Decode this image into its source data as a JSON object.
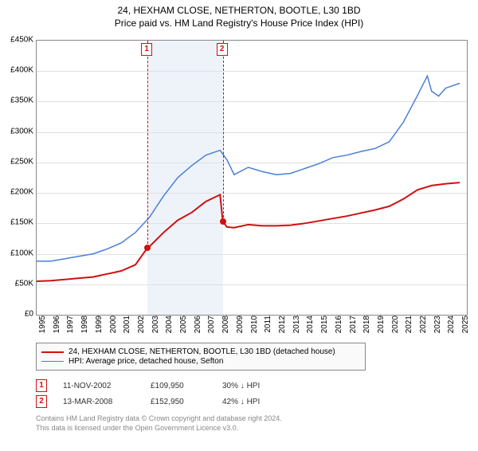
{
  "title": "24, HEXHAM CLOSE, NETHERTON, BOOTLE, L30 1BD",
  "subtitle": "Price paid vs. HM Land Registry's House Price Index (HPI)",
  "chart": {
    "type": "line",
    "background_color": "#ffffff",
    "grid_color": "#e0e0e0",
    "border_color": "#888888",
    "title_fontsize": 12,
    "label_fontsize": 10,
    "x": {
      "min": 1995,
      "max": 2025.5,
      "ticks": [
        1995,
        1996,
        1997,
        1998,
        1999,
        2000,
        2001,
        2002,
        2003,
        2004,
        2005,
        2006,
        2007,
        2008,
        2009,
        2010,
        2011,
        2012,
        2013,
        2014,
        2015,
        2016,
        2017,
        2018,
        2019,
        2020,
        2021,
        2022,
        2023,
        2024,
        2025
      ]
    },
    "y": {
      "min": 0,
      "max": 450000,
      "tick_step": 50000,
      "labels": [
        "£0",
        "£50K",
        "£100K",
        "£150K",
        "£200K",
        "£250K",
        "£300K",
        "£350K",
        "£400K",
        "£450K"
      ]
    },
    "band": {
      "start": 2002.86,
      "end": 2008.2,
      "color": "#eef3fa"
    },
    "series": [
      {
        "name": "24, HEXHAM CLOSE, NETHERTON, BOOTLE, L30 1BD (detached house)",
        "color": "#d01010",
        "line_width": 2,
        "points": [
          [
            1995,
            55000
          ],
          [
            1996,
            56000
          ],
          [
            1997,
            58000
          ],
          [
            1998,
            60000
          ],
          [
            1999,
            62000
          ],
          [
            2000,
            67000
          ],
          [
            2001,
            72000
          ],
          [
            2002,
            82000
          ],
          [
            2002.86,
            109950
          ],
          [
            2003,
            112000
          ],
          [
            2004,
            135000
          ],
          [
            2005,
            155000
          ],
          [
            2006,
            168000
          ],
          [
            2007,
            186000
          ],
          [
            2008,
            197000
          ],
          [
            2008.2,
            152950
          ],
          [
            2008.5,
            144000
          ],
          [
            2009,
            143000
          ],
          [
            2010,
            148000
          ],
          [
            2011,
            146000
          ],
          [
            2012,
            146000
          ],
          [
            2013,
            147000
          ],
          [
            2014,
            150000
          ],
          [
            2015,
            154000
          ],
          [
            2016,
            158000
          ],
          [
            2017,
            162000
          ],
          [
            2018,
            167000
          ],
          [
            2019,
            172000
          ],
          [
            2020,
            178000
          ],
          [
            2021,
            190000
          ],
          [
            2022,
            205000
          ],
          [
            2023,
            212000
          ],
          [
            2024,
            215000
          ],
          [
            2025,
            217000
          ]
        ]
      },
      {
        "name": "HPI: Average price, detached house, Sefton",
        "color": "#4a7fd6",
        "line_width": 1.5,
        "points": [
          [
            1995,
            88000
          ],
          [
            1996,
            88000
          ],
          [
            1997,
            92000
          ],
          [
            1998,
            96000
          ],
          [
            1999,
            100000
          ],
          [
            2000,
            108000
          ],
          [
            2001,
            118000
          ],
          [
            2002,
            135000
          ],
          [
            2003,
            160000
          ],
          [
            2004,
            195000
          ],
          [
            2005,
            225000
          ],
          [
            2006,
            245000
          ],
          [
            2007,
            262000
          ],
          [
            2008,
            270000
          ],
          [
            2008.5,
            254000
          ],
          [
            2009,
            230000
          ],
          [
            2010,
            242000
          ],
          [
            2011,
            235000
          ],
          [
            2012,
            230000
          ],
          [
            2013,
            232000
          ],
          [
            2014,
            240000
          ],
          [
            2015,
            248000
          ],
          [
            2016,
            258000
          ],
          [
            2017,
            262000
          ],
          [
            2018,
            268000
          ],
          [
            2019,
            273000
          ],
          [
            2020,
            284000
          ],
          [
            2021,
            316000
          ],
          [
            2022,
            360000
          ],
          [
            2022.7,
            392000
          ],
          [
            2023,
            367000
          ],
          [
            2023.5,
            359000
          ],
          [
            2024,
            372000
          ],
          [
            2025,
            380000
          ]
        ]
      }
    ],
    "markers": [
      {
        "n": "1",
        "x": 2002.86,
        "y": 109950,
        "color": "#d01010"
      },
      {
        "n": "2",
        "x": 2008.2,
        "y": 152950,
        "color": "#d01010"
      }
    ]
  },
  "legend": {
    "items": [
      {
        "label": "24, HEXHAM CLOSE, NETHERTON, BOOTLE, L30 1BD (detached house)",
        "color": "#d01010"
      },
      {
        "label": "HPI: Average price, detached house, Sefton",
        "color": "#4a7fd6"
      }
    ]
  },
  "events": [
    {
      "n": "1",
      "date": "11-NOV-2002",
      "price": "£109,950",
      "delta": "30%",
      "dir": "↓",
      "vs": "HPI"
    },
    {
      "n": "2",
      "date": "13-MAR-2008",
      "price": "£152,950",
      "delta": "42%",
      "dir": "↓",
      "vs": "HPI"
    }
  ],
  "footer": {
    "line1": "Contains HM Land Registry data © Crown copyright and database right 2024.",
    "line2": "This data is licensed under the Open Government Licence v3.0."
  }
}
